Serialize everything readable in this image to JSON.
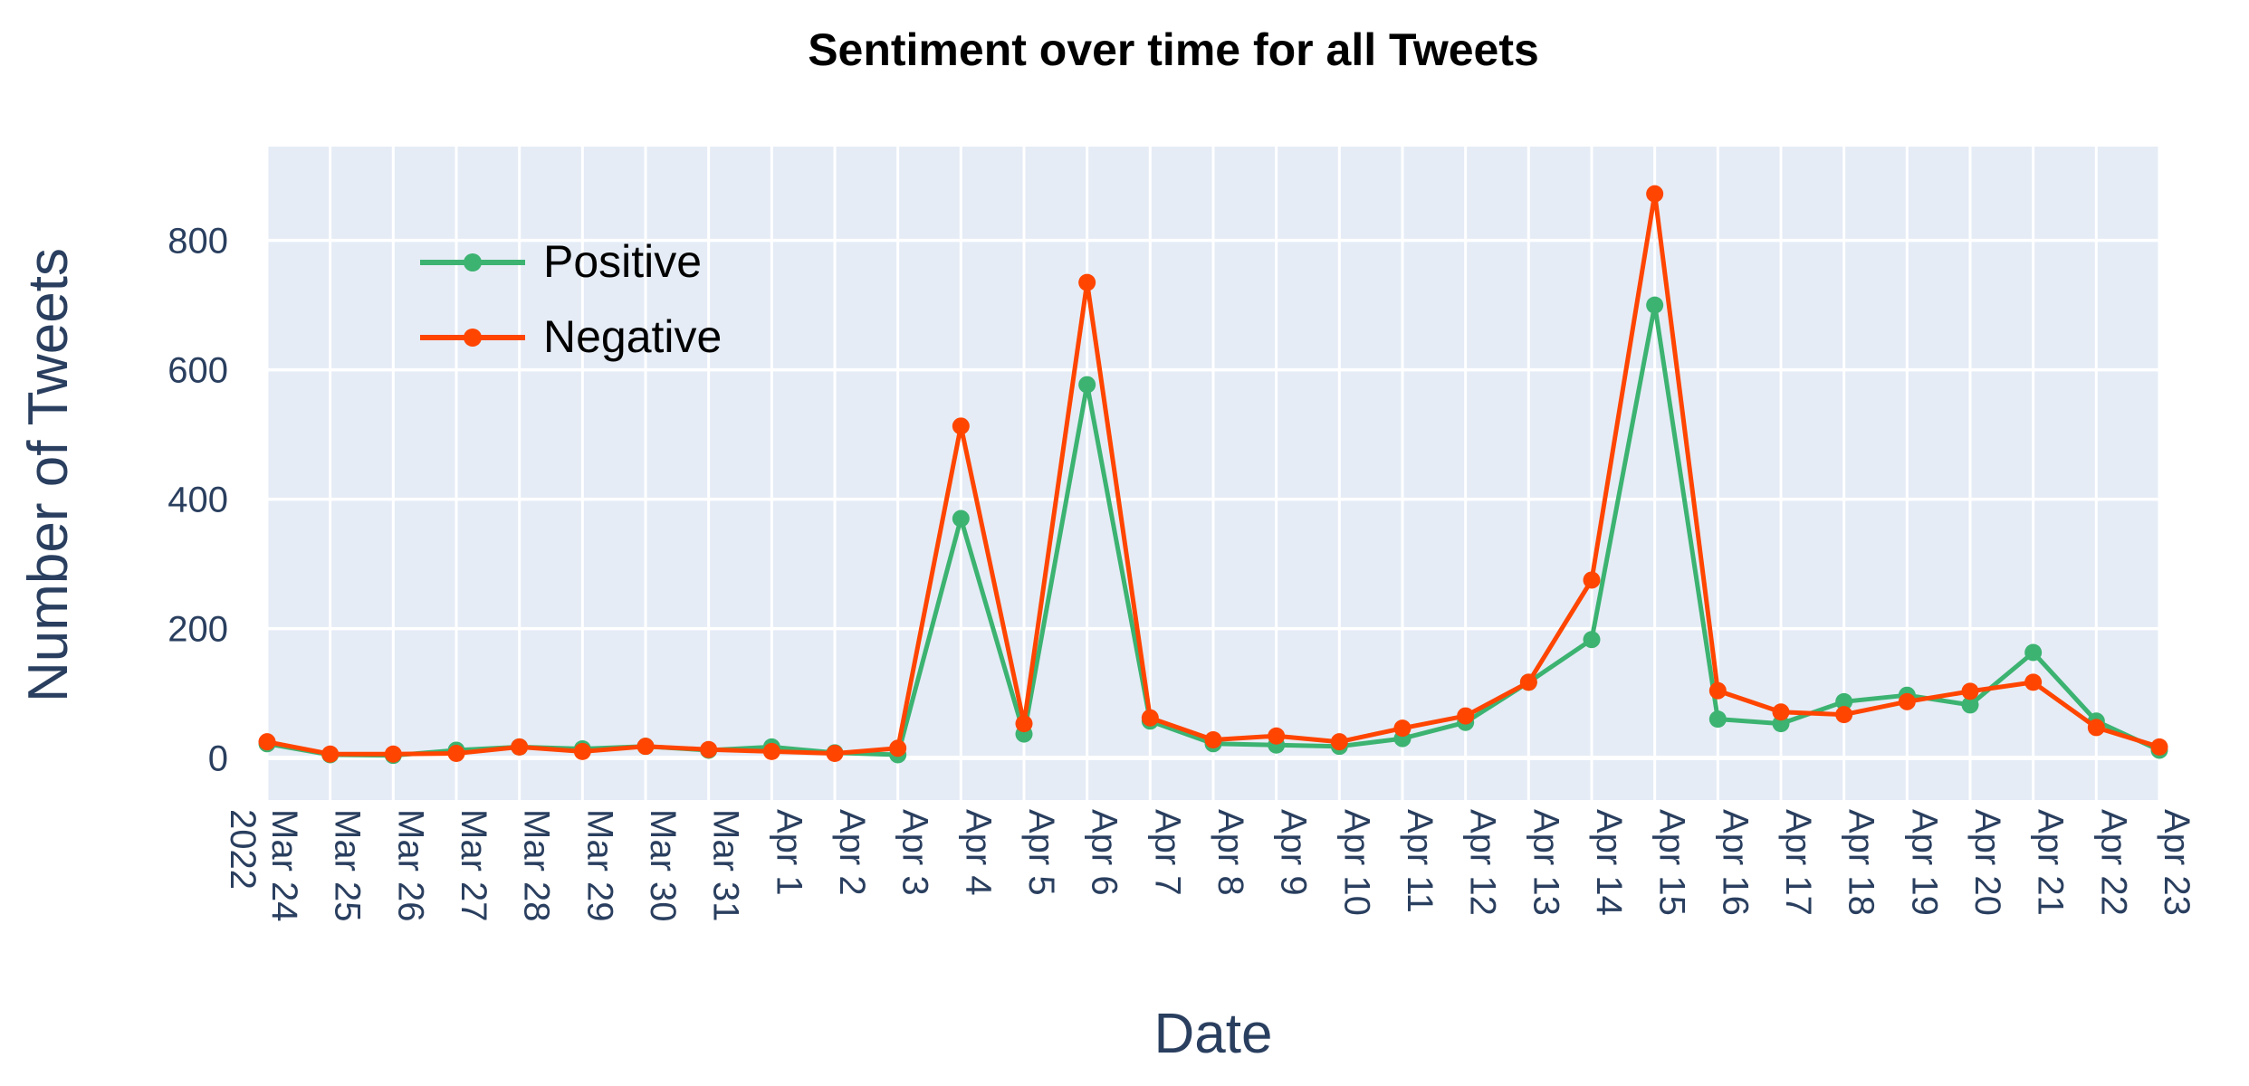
{
  "chart_data": {
    "type": "line",
    "title": "Sentiment over time for all Tweets",
    "xlabel": "Date",
    "ylabel": "Number of Tweets",
    "x": [
      "2022-03-24",
      "2022-03-25",
      "2022-03-26",
      "2022-03-27",
      "2022-03-28",
      "2022-03-29",
      "2022-03-30",
      "2022-03-31",
      "2022-04-01",
      "2022-04-02",
      "2022-04-03",
      "2022-04-04",
      "2022-04-05",
      "2022-04-06",
      "2022-04-07",
      "2022-04-08",
      "2022-04-09",
      "2022-04-10",
      "2022-04-11",
      "2022-04-12",
      "2022-04-13",
      "2022-04-14",
      "2022-04-15",
      "2022-04-16",
      "2022-04-17",
      "2022-04-18",
      "2022-04-19",
      "2022-04-20",
      "2022-04-21",
      "2022-04-22",
      "2022-04-23"
    ],
    "x_tick_labels": [
      "Mar 24",
      "Mar 25",
      "Mar 26",
      "Mar 27",
      "Mar 28",
      "Mar 29",
      "Mar 30",
      "Mar 31",
      "Apr 1",
      "Apr 2",
      "Apr 3",
      "Apr 4",
      "Apr 5",
      "Apr 6",
      "Apr 7",
      "Apr 8",
      "Apr 9",
      "Apr 10",
      "Apr 11",
      "Apr 12",
      "Apr 13",
      "Apr 14",
      "Apr 15",
      "Apr 16",
      "Apr 17",
      "Apr 18",
      "Apr 19",
      "Apr 20",
      "Apr 21",
      "Apr 22",
      "Apr 23"
    ],
    "x_year_label": "2022",
    "y_ticks": [
      0,
      200,
      400,
      600,
      800
    ],
    "ylim": [
      -65,
      945
    ],
    "grid": true,
    "legend_position": "top-left",
    "series": [
      {
        "name": "Positive",
        "color": "#3cb371",
        "values": [
          22,
          5,
          4,
          12,
          17,
          14,
          18,
          12,
          17,
          8,
          5,
          370,
          37,
          577,
          57,
          22,
          20,
          18,
          30,
          55,
          117,
          183,
          700,
          60,
          53,
          87,
          97,
          82,
          163,
          57,
          12
        ]
      },
      {
        "name": "Negative",
        "color": "#ff4500",
        "values": [
          25,
          6,
          6,
          7,
          17,
          10,
          18,
          13,
          10,
          7,
          15,
          513,
          53,
          735,
          62,
          28,
          34,
          25,
          46,
          65,
          117,
          275,
          872,
          104,
          71,
          67,
          87,
          103,
          117,
          47,
          17
        ]
      }
    ]
  }
}
